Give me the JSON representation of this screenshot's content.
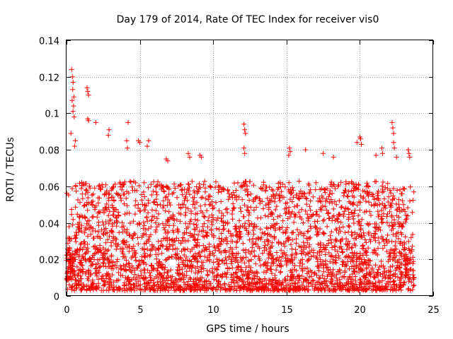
{
  "chart_data": {
    "type": "scatter",
    "title": "Day 179 of 2014, Rate Of TEC Index for receiver vis0",
    "xlabel": "GPS time / hours",
    "ylabel": "ROTI / TECUs",
    "xlim": [
      0,
      25
    ],
    "ylim": [
      0,
      0.14
    ],
    "x_ticks": [
      0,
      5,
      10,
      15,
      20,
      25
    ],
    "y_ticks": [
      0,
      0.02,
      0.04,
      0.06,
      0.08,
      0.1,
      0.12,
      0.14
    ],
    "x_tick_labels": [
      "0",
      "5",
      "10",
      "15",
      "20",
      "25"
    ],
    "y_tick_labels": [
      "0",
      "0.02",
      "0.04",
      "0.06",
      "0.08",
      "0.1",
      "0.12",
      "0.14"
    ],
    "grid": true,
    "marker": "+",
    "color": "#ff0000",
    "series": [
      {
        "name": "ROTI",
        "points": [
          [
            0.35,
            0.124
          ],
          [
            0.4,
            0.12
          ],
          [
            0.45,
            0.117
          ],
          [
            0.42,
            0.113
          ],
          [
            0.5,
            0.109
          ],
          [
            0.38,
            0.107
          ],
          [
            0.48,
            0.104
          ],
          [
            0.44,
            0.101
          ],
          [
            0.52,
            0.098
          ],
          [
            1.4,
            0.114
          ],
          [
            1.45,
            0.112
          ],
          [
            1.5,
            0.11
          ],
          [
            1.45,
            0.097
          ],
          [
            1.5,
            0.096
          ],
          [
            2.0,
            0.095
          ],
          [
            0.3,
            0.089
          ],
          [
            0.6,
            0.085
          ],
          [
            0.55,
            0.082
          ],
          [
            2.9,
            0.091
          ],
          [
            2.85,
            0.088
          ],
          [
            4.2,
            0.095
          ],
          [
            4.1,
            0.085
          ],
          [
            4.15,
            0.081
          ],
          [
            4.9,
            0.085
          ],
          [
            5.0,
            0.084
          ],
          [
            5.6,
            0.085
          ],
          [
            5.5,
            0.082
          ],
          [
            6.8,
            0.075
          ],
          [
            6.9,
            0.074
          ],
          [
            8.3,
            0.078
          ],
          [
            8.4,
            0.076
          ],
          [
            9.1,
            0.077
          ],
          [
            9.2,
            0.076
          ],
          [
            12.1,
            0.094
          ],
          [
            12.15,
            0.091
          ],
          [
            12.2,
            0.089
          ],
          [
            12.1,
            0.081
          ],
          [
            12.15,
            0.078
          ],
          [
            15.2,
            0.081
          ],
          [
            15.25,
            0.079
          ],
          [
            15.15,
            0.077
          ],
          [
            16.3,
            0.08
          ],
          [
            17.5,
            0.078
          ],
          [
            18.2,
            0.076
          ],
          [
            19.8,
            0.084
          ],
          [
            20.0,
            0.087
          ],
          [
            20.05,
            0.086
          ],
          [
            20.1,
            0.083
          ],
          [
            21.1,
            0.077
          ],
          [
            21.5,
            0.081
          ],
          [
            21.55,
            0.078
          ],
          [
            22.2,
            0.095
          ],
          [
            22.25,
            0.092
          ],
          [
            22.3,
            0.089
          ],
          [
            22.3,
            0.084
          ],
          [
            22.35,
            0.081
          ],
          [
            22.5,
            0.076
          ],
          [
            23.3,
            0.08
          ],
          [
            23.35,
            0.078
          ],
          [
            23.4,
            0.076
          ]
        ],
        "bulk": {
          "description": "dense cloud of ROTI samples spanning the full day",
          "x_range": [
            0.0,
            23.7
          ],
          "typical_range": [
            0.003,
            0.06
          ],
          "median": 0.02,
          "count": 3200
        }
      }
    ]
  }
}
